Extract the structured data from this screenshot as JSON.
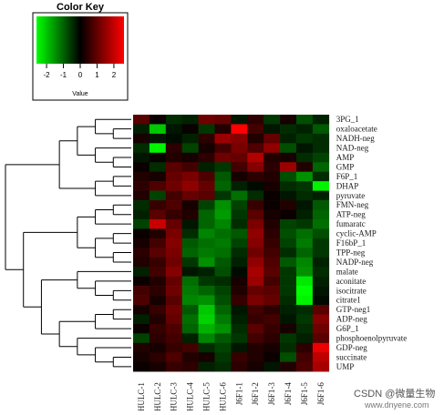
{
  "color_key": {
    "title": "Color Key",
    "value_label": "Value",
    "ticks": [
      "-2",
      "-1",
      "0",
      "1",
      "2"
    ],
    "tick_values": [
      -2,
      -1,
      0,
      1,
      2
    ],
    "range": [
      -2.6,
      2.6
    ],
    "low_color": "#00ff00",
    "mid_color": "#000000",
    "high_color": "#ff0000"
  },
  "watermark": {
    "text": "CSDN @微量生物",
    "url": "www.dnyene.com"
  },
  "chart_data": {
    "type": "heatmap",
    "title": "",
    "columns": [
      "HULC-1",
      "HULC-2",
      "HULC-3",
      "HULC-4",
      "HULC-5",
      "HULC-6",
      "J6F1-1",
      "J6F1-2",
      "J6F1-3",
      "J6F1-4",
      "J6F1-5",
      "J6F1-6"
    ],
    "rows": [
      "3PG_1",
      "oxaloacetate",
      "NADH-neg",
      "NAD-neg",
      "AMP",
      "GMP",
      "F6P_1",
      "DHAP",
      "pyruvate",
      "FMN-neg",
      "ATP-neg",
      "fumaratc",
      "cyclic-AMP",
      "F16bP_1",
      "TPP-neg",
      "NADP-neg",
      "malate",
      "aconitate",
      "isocitrate",
      "citrate1",
      "GTP-neg1",
      "ADP-neg",
      "G6P_1",
      "phosphoenolpyruvate",
      "GDP-neg",
      "succinate",
      "UMP"
    ],
    "values": [
      [
        0.8,
        0.1,
        -0.4,
        -0.3,
        1.0,
        0.9,
        -0.2,
        0.4,
        -0.5,
        0.2,
        -0.7,
        -0.3
      ],
      [
        -0.3,
        -1.8,
        -0.2,
        0.1,
        -0.5,
        0.3,
        2.3,
        0.6,
        -0.2,
        -0.4,
        -0.3,
        -0.8
      ],
      [
        0.2,
        -0.2,
        -0.1,
        -0.3,
        0.4,
        1.4,
        1.2,
        0.3,
        0.9,
        -0.3,
        -0.5,
        -0.4
      ],
      [
        -0.4,
        -2.2,
        0.4,
        -0.6,
        0.2,
        0.6,
        1.1,
        0.7,
        1.3,
        -0.7,
        -0.2,
        -0.4
      ],
      [
        -0.2,
        0.1,
        0.3,
        0.2,
        0.4,
        1.0,
        0.9,
        1.6,
        0.3,
        0.2,
        -0.4,
        -0.6
      ],
      [
        0.1,
        -0.4,
        0.8,
        0.6,
        -0.3,
        -0.5,
        0.6,
        1.2,
        0.4,
        1.4,
        0.3,
        -0.9
      ],
      [
        0.3,
        0.2,
        0.9,
        1.1,
        0.7,
        -0.8,
        0.2,
        0.4,
        0.3,
        -0.7,
        -1.3,
        -0.4
      ],
      [
        0.4,
        0.7,
        1.0,
        1.3,
        0.9,
        -0.9,
        -0.3,
        -0.1,
        0.2,
        -0.4,
        -0.5,
        -2.2
      ],
      [
        0.3,
        -0.6,
        0.6,
        0.9,
        0.8,
        -0.5,
        -1.0,
        -0.4,
        0.1,
        -0.2,
        -0.4,
        -0.3
      ],
      [
        -0.4,
        0.5,
        0.7,
        0.2,
        -0.6,
        -1.3,
        -0.6,
        0.5,
        0.1,
        0.3,
        -0.2,
        -0.8
      ],
      [
        -0.3,
        0.8,
        0.5,
        0.3,
        -0.9,
        -1.4,
        -0.5,
        0.8,
        0.2,
        0.1,
        -0.3,
        -0.9
      ],
      [
        -0.6,
        1.8,
        0.9,
        -0.2,
        -0.9,
        -1.2,
        -0.4,
        1.1,
        0.3,
        -0.6,
        -0.5,
        -1.0
      ],
      [
        0.1,
        0.3,
        1.1,
        -0.4,
        -1.2,
        -1.0,
        -0.8,
        1.3,
        0.4,
        -0.7,
        -1.0,
        -0.7
      ],
      [
        0.2,
        0.6,
        1.2,
        -0.8,
        -1.0,
        -1.1,
        -0.6,
        1.2,
        0.5,
        -0.6,
        -1.1,
        -0.5
      ],
      [
        0.4,
        0.8,
        1.1,
        -0.9,
        -1.1,
        -1.0,
        -0.4,
        1.0,
        0.6,
        -0.4,
        -0.9,
        -0.5
      ],
      [
        0.3,
        0.5,
        1.0,
        -0.5,
        -1.3,
        -0.8,
        -0.3,
        1.3,
        0.7,
        -0.8,
        -1.2,
        -0.3
      ],
      [
        -0.3,
        0.6,
        1.2,
        -0.2,
        -0.3,
        -0.7,
        -0.1,
        1.5,
        0.8,
        -0.5,
        -1.3,
        -0.4
      ],
      [
        0.1,
        0.3,
        0.9,
        -1.0,
        -0.5,
        -0.4,
        0.2,
        1.4,
        0.6,
        -0.5,
        -2.1,
        -0.3
      ],
      [
        0.6,
        0.4,
        1.0,
        -1.1,
        -0.9,
        -0.6,
        0.3,
        0.9,
        0.8,
        -0.5,
        -2.3,
        -0.2
      ],
      [
        0.7,
        0.2,
        0.8,
        -1.2,
        -1.3,
        -0.7,
        0.5,
        1.1,
        0.9,
        -0.4,
        -2.2,
        -0.1
      ],
      [
        0.2,
        0.5,
        1.0,
        -0.8,
        -1.8,
        -0.9,
        -0.2,
        0.6,
        0.4,
        -0.3,
        -0.4,
        0.8
      ],
      [
        -0.3,
        0.3,
        0.9,
        -1.0,
        -1.9,
        -1.1,
        -0.3,
        0.5,
        0.6,
        -0.2,
        -0.5,
        1.2
      ],
      [
        0.1,
        0.5,
        0.7,
        -0.9,
        -1.6,
        -1.3,
        -0.4,
        0.8,
        0.5,
        0.2,
        -0.4,
        1.0
      ],
      [
        -0.6,
        0.4,
        0.6,
        -0.3,
        -1.2,
        -0.8,
        -0.5,
        0.6,
        0.4,
        -0.5,
        -0.3,
        0.8
      ],
      [
        0.3,
        0.2,
        0.5,
        0.6,
        -0.4,
        -0.6,
        -0.2,
        0.3,
        0.2,
        -0.4,
        0.4,
        2.1
      ],
      [
        0.2,
        0.4,
        0.7,
        0.3,
        0.2,
        -0.5,
        0.5,
        0.3,
        0.1,
        -0.7,
        0.6,
        1.7
      ],
      [
        0.1,
        0.2,
        0.5,
        0.4,
        -0.3,
        -0.4,
        0.4,
        0.2,
        -0.2,
        0.3,
        0.7,
        1.5
      ]
    ],
    "legend_placement": "top-left",
    "grid": false
  }
}
